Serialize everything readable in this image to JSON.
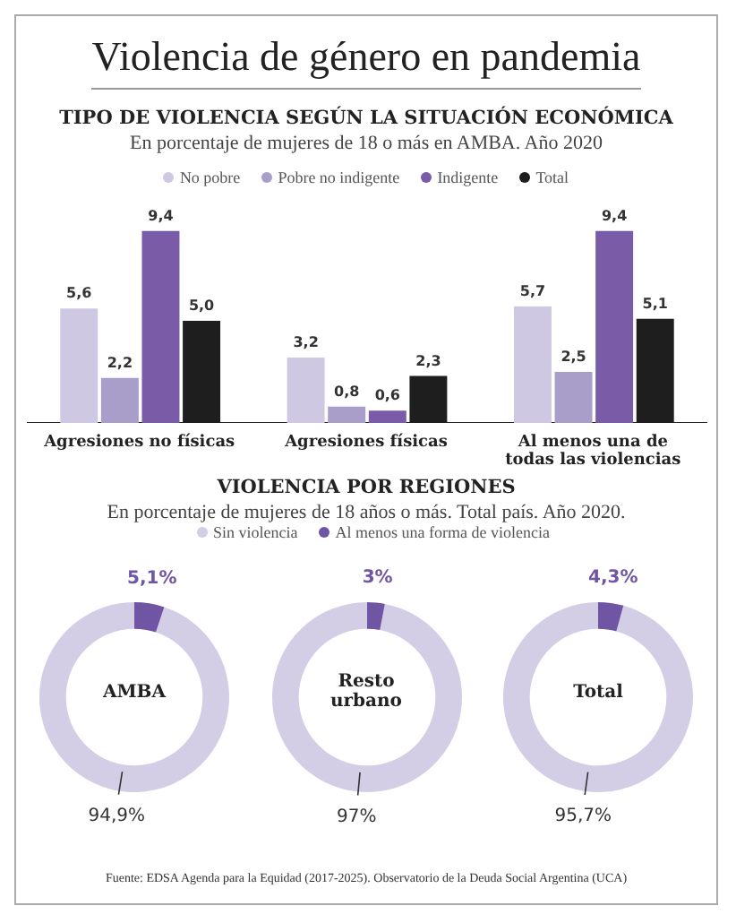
{
  "chart_data": [
    {
      "type": "other",
      "title": "Violencia de género en pandemia"
    },
    {
      "type": "bar",
      "title": "TIPO DE VIOLENCIA SEGÚN LA SITUACIÓN ECONÓMICA",
      "subtitle": "En porcentaje de mujeres de 18 o más en AMBA. Año 2020",
      "categories": [
        "Agresiones no físicas",
        "Agresiones físicas",
        "Al menos una de todas las violencias"
      ],
      "legend": "top",
      "series": [
        {
          "name": "No pobre",
          "color": "#cfc8e2",
          "values": [
            5.6,
            3.2,
            5.7
          ],
          "value_labels": [
            "5,6",
            "3,2",
            "5,7"
          ]
        },
        {
          "name": "Pobre no indigente",
          "color": "#a99dc9",
          "values": [
            2.2,
            0.8,
            2.5
          ],
          "value_labels": [
            "2,2",
            "0,8",
            "2,5"
          ]
        },
        {
          "name": "Indigente",
          "color": "#7a5ba8",
          "values": [
            9.4,
            0.6,
            9.4
          ],
          "value_labels": [
            "9,4",
            "0,6",
            "9,4"
          ]
        },
        {
          "name": "Total",
          "color": "#1e1e1e",
          "values": [
            5.0,
            2.3,
            5.1
          ],
          "value_labels": [
            "5,0",
            "2,3",
            "5,1"
          ]
        }
      ]
    },
    {
      "type": "other",
      "title": "VIOLENCIA POR REGIONES",
      "subtitle": "En porcentaje de mujeres de 18 años o más. Total país. Año 2020."
    },
    {
      "type": "donut",
      "title": "AMBA",
      "legend": "top",
      "categories": [
        "Sin violencia",
        "Al menos una forma de violencia"
      ],
      "values": [
        94.9,
        5.1
      ],
      "colors": [
        "#d3cde6",
        "#6f55a3"
      ],
      "value_labels": [
        "94,9%",
        "5,1%"
      ]
    },
    {
      "type": "donut",
      "title": "Resto urbano",
      "categories": [
        null,
        null
      ],
      "values": [
        97,
        3
      ],
      "colors": [
        "#d3cde6",
        "#6f55a3"
      ],
      "value_labels": [
        "97%",
        "3%"
      ]
    },
    {
      "type": "donut",
      "title": "Total",
      "categories": [
        null,
        null
      ],
      "values": [
        95.7,
        4.3
      ],
      "colors": [
        "#d3cde6",
        "#6f55a3"
      ],
      "value_labels": [
        "95,7%",
        "4,3%"
      ]
    },
    {
      "type": "other",
      "annotations": [
        "Fuente: EDSA Agenda para la Equidad (2017-2025). Observatorio de la Deuda Social Argentina (UCA)"
      ]
    }
  ]
}
